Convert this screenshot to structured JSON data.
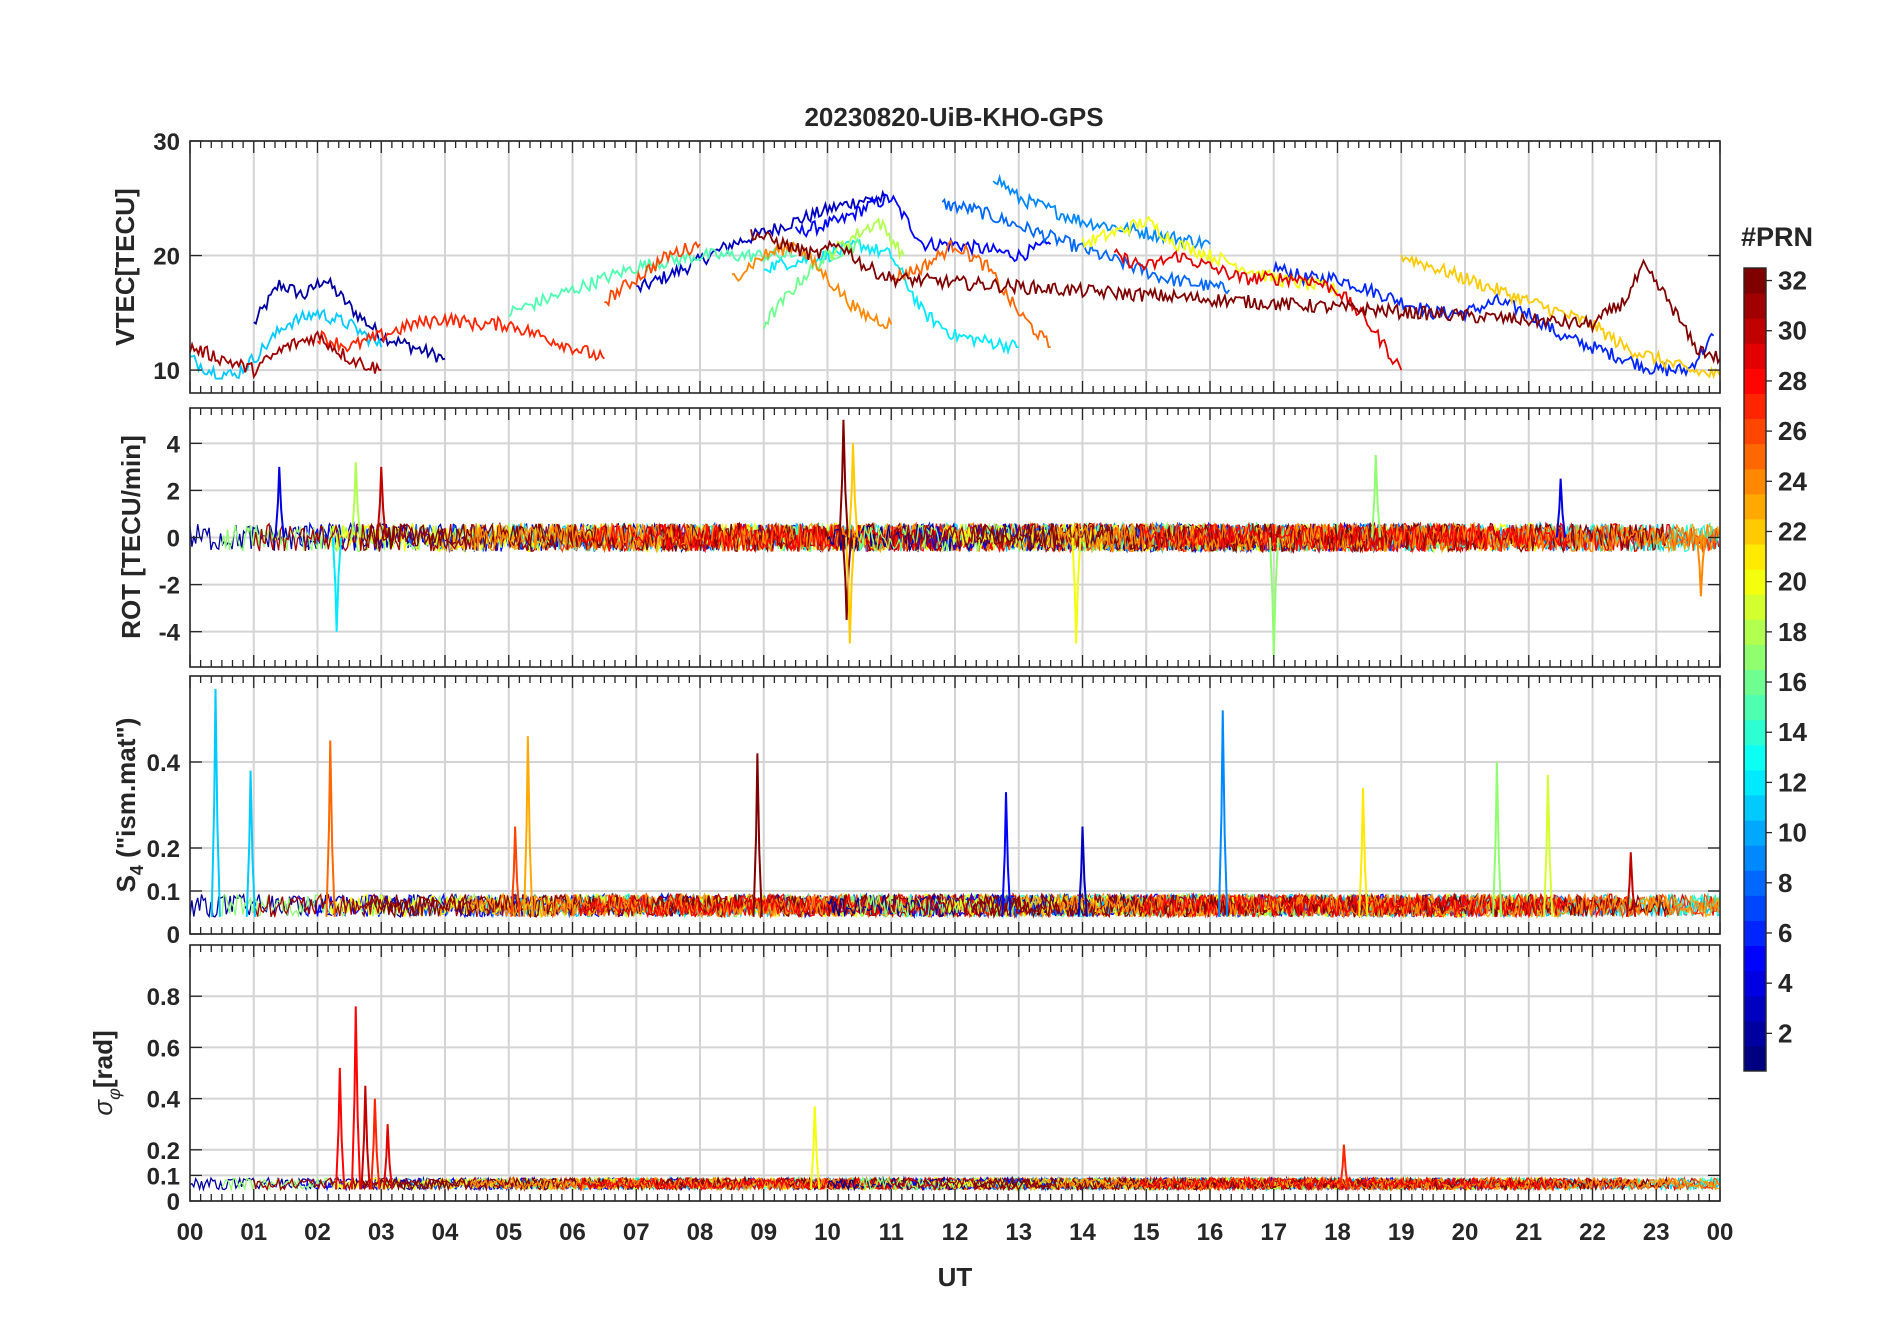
{
  "chart_data": {
    "type": "line",
    "title": "20230820-UiB-KHO-GPS",
    "xlabel": "UT",
    "x_ticks": [
      "00",
      "01",
      "02",
      "03",
      "04",
      "05",
      "06",
      "07",
      "08",
      "09",
      "10",
      "11",
      "12",
      "13",
      "14",
      "15",
      "16",
      "17",
      "18",
      "19",
      "20",
      "21",
      "22",
      "23",
      "00"
    ],
    "xlim": [
      0,
      24
    ],
    "grid": true,
    "colorbar": {
      "label": "#PRN",
      "range": [
        1,
        32
      ],
      "ticks": [
        "2",
        "4",
        "6",
        "8",
        "10",
        "12",
        "14",
        "16",
        "18",
        "20",
        "22",
        "24",
        "26",
        "28",
        "30",
        "32"
      ],
      "colormap": "jet"
    },
    "panels": [
      {
        "id": "vtec",
        "ylabel": "VTEC[TECU]",
        "ylim": [
          8,
          30
        ],
        "yticks": [
          "10",
          "20",
          "30"
        ],
        "ytick_values": [
          10,
          20,
          30
        ],
        "grid_values": [
          10,
          20,
          30
        ],
        "series": [
          {
            "prn": 2,
            "x": [
              1.0,
              1.4,
              1.8,
              2.1,
              2.6,
              3.0,
              3.5,
              4.0
            ],
            "values": [
              14,
              17.5,
              16.5,
              18,
              15,
              13,
              12,
              11
            ]
          },
          {
            "prn": 3,
            "x": [
              7.0,
              7.8,
              8.5,
              9.0,
              9.5,
              10.0,
              10.5,
              10.9
            ],
            "values": [
              17,
              19,
              21,
              22,
              23,
              24,
              24.8,
              25
            ]
          },
          {
            "prn": 5,
            "x": [
              9.5,
              10.2,
              10.7,
              11.0,
              11.5,
              12.0,
              12.5,
              13.0,
              13.5
            ],
            "values": [
              22,
              23,
              24.5,
              25,
              21,
              21,
              20.5,
              20,
              21
            ]
          },
          {
            "prn": 6,
            "x": [
              17.0,
              17.5,
              18.0,
              18.5,
              19.0,
              19.5,
              20.0,
              20.5,
              21.0,
              21.5,
              22.0,
              22.5,
              23.0,
              23.5,
              23.9
            ],
            "values": [
              19,
              18,
              18,
              17,
              16,
              15,
              15,
              16,
              15,
              13,
              12,
              11,
              10,
              10,
              13
            ]
          },
          {
            "prn": 8,
            "x": [
              11.8,
              12.3,
              12.8,
              13.3,
              13.8,
              14.3,
              14.8,
              15.3,
              15.8,
              16.3
            ],
            "values": [
              24.5,
              24,
              23,
              22,
              21,
              20,
              19,
              18,
              17.5,
              17
            ]
          },
          {
            "prn": 9,
            "x": [
              12.6,
              13.0,
              13.5,
              14.0,
              14.5,
              15.0,
              15.5,
              16.0
            ],
            "values": [
              27,
              25,
              24,
              23,
              22.5,
              22,
              21.5,
              21
            ]
          },
          {
            "prn": 11,
            "x": [
              0.0,
              0.3,
              0.7,
              1.0,
              1.5,
              2.0,
              2.5,
              3.0
            ],
            "values": [
              11,
              10,
              9.5,
              11,
              14,
              15,
              14,
              12
            ]
          },
          {
            "prn": 12,
            "x": [
              9.0,
              9.5,
              10.0,
              10.5,
              11.0,
              11.5,
              12.0,
              12.5,
              13.0
            ],
            "values": [
              19,
              19.5,
              20,
              21,
              20,
              15,
              13,
              12.5,
              12
            ]
          },
          {
            "prn": 15,
            "x": [
              5.0,
              5.5,
              6.0,
              6.5,
              7.0,
              7.5,
              8.0,
              8.5,
              9.0,
              9.5
            ],
            "values": [
              15,
              16,
              17,
              18,
              19,
              19.5,
              20,
              20,
              20,
              20
            ]
          },
          {
            "prn": 16,
            "x": [
              9.0,
              9.3,
              9.6,
              10.0,
              10.5
            ],
            "values": [
              14,
              16,
              18,
              20,
              21
            ]
          },
          {
            "prn": 18,
            "x": [
              10.0,
              10.5,
              10.8,
              11.2
            ],
            "values": [
              20,
              22,
              23,
              20
            ]
          },
          {
            "prn": 20,
            "x": [
              14.0,
              14.5,
              15.0,
              15.5,
              16.0,
              16.5,
              17.0,
              17.5,
              18.0
            ],
            "values": [
              21,
              22,
              23,
              21,
              20,
              19,
              18,
              17.5,
              17
            ]
          },
          {
            "prn": 22,
            "x": [
              19.0,
              19.5,
              20.0,
              20.5,
              21.0,
              21.5,
              22.0,
              22.5,
              23.0,
              23.5,
              24.0
            ],
            "values": [
              20,
              19,
              18,
              17,
              16,
              15,
              14,
              12,
              11,
              10,
              9.5
            ]
          },
          {
            "prn": 24,
            "x": [
              8.5,
              9.0,
              9.5,
              10.0,
              10.5,
              11.0
            ],
            "values": [
              18,
              20,
              21,
              18,
              15,
              14
            ]
          },
          {
            "prn": 25,
            "x": [
              11.0,
              11.5,
              12.0,
              12.5,
              13.0,
              13.5
            ],
            "values": [
              18,
              19,
              21,
              19,
              15,
              12
            ]
          },
          {
            "prn": 26,
            "x": [
              6.5,
              7.0,
              7.5,
              8.0
            ],
            "values": [
              16,
              18,
              20,
              21
            ]
          },
          {
            "prn": 27,
            "x": [
              2.0,
              2.5,
              3.0,
              3.5,
              4.0,
              4.5,
              5.0,
              5.5,
              6.0,
              6.5
            ],
            "values": [
              13,
              12,
              13,
              14,
              14.5,
              14,
              14,
              13,
              12,
              11
            ]
          },
          {
            "prn": 29,
            "x": [
              14.5,
              15.0,
              15.5,
              16.0,
              16.5,
              17.0,
              17.5,
              18.0,
              18.5,
              19.0
            ],
            "values": [
              20,
              19,
              20,
              19,
              18,
              18,
              18,
              17,
              14,
              10
            ]
          },
          {
            "prn": 31,
            "x": [
              0.0,
              0.5,
              1.0,
              1.5,
              2.0,
              2.5,
              3.0
            ],
            "values": [
              12,
              11,
              10,
              12,
              13,
              11,
              10
            ]
          },
          {
            "prn": 32,
            "x": [
              8.8,
              9.3,
              9.8,
              10.2,
              10.6,
              11.0,
              22.0,
              22.5,
              22.8,
              23.2,
              23.6,
              24.0
            ],
            "values": [
              22,
              21,
              20,
              21,
              19,
              18,
              14,
              16,
              19,
              16,
              12,
              11
            ]
          }
        ]
      },
      {
        "id": "rot",
        "ylabel": "ROT [TECU/min]",
        "ylim": [
          -5.5,
          5.5
        ],
        "yticks": [
          "4",
          "2",
          "0",
          "-2",
          "-4"
        ],
        "ytick_values": [
          4,
          2,
          0,
          -2,
          -4
        ],
        "grid_values": [
          -4,
          -2,
          0,
          2,
          4
        ],
        "spikes": [
          {
            "prn": 4,
            "x": 1.4,
            "value": 3.0
          },
          {
            "prn": 18,
            "x": 2.6,
            "value": 3.2
          },
          {
            "prn": 12,
            "x": 2.3,
            "value": -4.0
          },
          {
            "prn": 30,
            "x": 3.0,
            "value": 3.0
          },
          {
            "prn": 32,
            "x": 10.25,
            "value": 5.0
          },
          {
            "prn": 32,
            "x": 10.3,
            "value": -3.5
          },
          {
            "prn": 22,
            "x": 10.4,
            "value": 4.0
          },
          {
            "prn": 22,
            "x": 10.35,
            "value": -4.5
          },
          {
            "prn": 20,
            "x": 13.9,
            "value": -4.5
          },
          {
            "prn": 17,
            "x": 17.0,
            "value": -5.0
          },
          {
            "prn": 17,
            "x": 18.6,
            "value": 3.5
          },
          {
            "prn": 4,
            "x": 21.5,
            "value": 2.5
          },
          {
            "prn": 24,
            "x": 23.7,
            "value": -2.5
          }
        ]
      },
      {
        "id": "s4",
        "ylabel": "S4 (\"ism.mat\")",
        "ylabel_main": "S",
        "ylabel_sub": "4",
        "ylabel_rest": " (\"ism.mat\")",
        "ylim": [
          0,
          0.6
        ],
        "yticks": [
          "0.4",
          "0.2",
          "0.1",
          "0"
        ],
        "ytick_values": [
          0.4,
          0.2,
          0.1,
          0
        ],
        "grid_values": [
          0,
          0.1,
          0.2,
          0.4
        ],
        "spikes": [
          {
            "prn": 11,
            "x": 0.4,
            "value": 0.57
          },
          {
            "prn": 11,
            "x": 0.95,
            "value": 0.38
          },
          {
            "prn": 25,
            "x": 2.2,
            "value": 0.45
          },
          {
            "prn": 23,
            "x": 5.3,
            "value": 0.46
          },
          {
            "prn": 26,
            "x": 5.1,
            "value": 0.25
          },
          {
            "prn": 32,
            "x": 8.9,
            "value": 0.42
          },
          {
            "prn": 5,
            "x": 12.8,
            "value": 0.33
          },
          {
            "prn": 3,
            "x": 14.0,
            "value": 0.25
          },
          {
            "prn": 9,
            "x": 16.2,
            "value": 0.52
          },
          {
            "prn": 21,
            "x": 18.4,
            "value": 0.34
          },
          {
            "prn": 17,
            "x": 20.5,
            "value": 0.4
          },
          {
            "prn": 19,
            "x": 21.3,
            "value": 0.37
          },
          {
            "prn": 30,
            "x": 22.6,
            "value": 0.19
          }
        ]
      },
      {
        "id": "sigphi",
        "ylabel": "σφ[rad]",
        "ylabel_main": "σ",
        "ylabel_sub": "φ",
        "ylabel_rest": "[rad]",
        "ylim": [
          0,
          1.0
        ],
        "yticks": [
          "0.8",
          "0.6",
          "0.4",
          "0.2",
          "0.1",
          "0"
        ],
        "ytick_values": [
          0.8,
          0.6,
          0.4,
          0.2,
          0.1,
          0
        ],
        "grid_values": [
          0,
          0.1,
          0.2,
          0.4,
          0.6,
          0.8
        ],
        "spikes": [
          {
            "prn": 28,
            "x": 2.35,
            "value": 0.52
          },
          {
            "prn": 28,
            "x": 2.6,
            "value": 0.76
          },
          {
            "prn": 30,
            "x": 2.75,
            "value": 0.45
          },
          {
            "prn": 27,
            "x": 2.9,
            "value": 0.4
          },
          {
            "prn": 29,
            "x": 3.1,
            "value": 0.3
          },
          {
            "prn": 20,
            "x": 9.8,
            "value": 0.37
          },
          {
            "prn": 27,
            "x": 18.1,
            "value": 0.22
          }
        ]
      }
    ]
  }
}
